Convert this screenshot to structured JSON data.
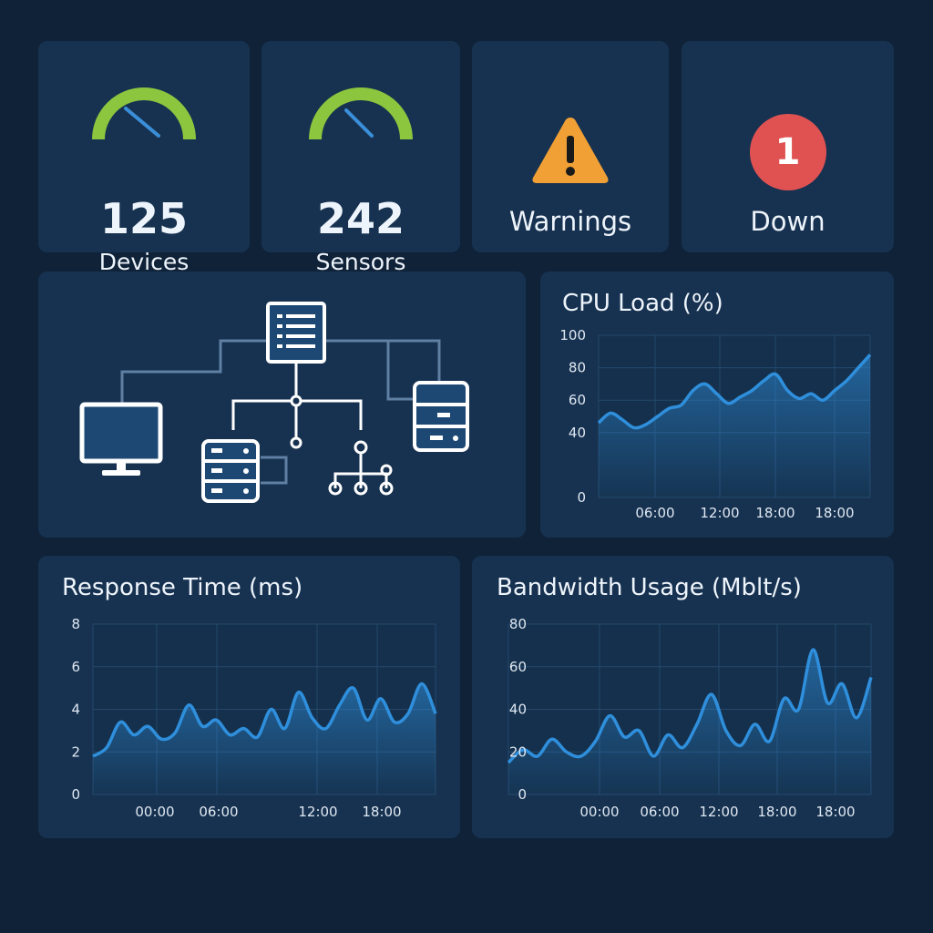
{
  "stats": {
    "devices": {
      "value": "125",
      "label": "Devices"
    },
    "sensors": {
      "value": "242",
      "label": "Sensors"
    },
    "warnings": {
      "label": "Warnings"
    },
    "down": {
      "count": "1",
      "label": "Down"
    }
  },
  "colors": {
    "background": "#0f2238",
    "card": "#173250",
    "gauge_green": "#8cc63f",
    "needle": "#3a8fd8",
    "warning": "#f0a035",
    "down": "#e05252",
    "line": "#2f8fdc"
  },
  "icons": {
    "topology": [
      "server-icon",
      "monitor-icon",
      "database-icon",
      "network-icon"
    ]
  },
  "chart_data": [
    {
      "id": "cpu",
      "type": "area",
      "title": "CPU Load (%)",
      "y_ticks": [
        "100",
        "80",
        "60",
        "40",
        "0"
      ],
      "x_ticks": [
        "06:00",
        "12:00",
        "18:00",
        "18:00"
      ],
      "grid": true,
      "values": [
        46,
        52,
        48,
        43,
        45,
        50,
        55,
        57,
        66,
        70,
        64,
        58,
        62,
        66,
        72,
        76,
        66,
        61,
        64,
        60,
        66,
        72,
        80,
        88
      ]
    },
    {
      "id": "response",
      "type": "area",
      "title": "Response Time (ms)",
      "y_ticks": [
        "8",
        "6",
        "4",
        "2",
        "0"
      ],
      "x_ticks": [
        "00:00",
        "06:00",
        "12:00",
        "18:00"
      ],
      "grid": true,
      "values": [
        1.8,
        2.2,
        3.4,
        2.8,
        3.2,
        2.6,
        2.9,
        4.2,
        3.2,
        3.5,
        2.8,
        3.1,
        2.7,
        4.0,
        3.1,
        4.8,
        3.6,
        3.1,
        4.2,
        5.0,
        3.5,
        4.5,
        3.4,
        3.8,
        5.2,
        3.8
      ]
    },
    {
      "id": "bandwidth",
      "type": "area",
      "title": "Bandwidth Usage (Mblt/s)",
      "y_ticks": [
        "80",
        "60",
        "40",
        "20",
        "0"
      ],
      "x_ticks": [
        "00:00",
        "06:00",
        "12:00",
        "18:00",
        "18:00"
      ],
      "grid": true,
      "values": [
        15,
        21,
        18,
        26,
        20,
        18,
        25,
        37,
        27,
        30,
        18,
        28,
        22,
        33,
        47,
        30,
        23,
        33,
        25,
        45,
        40,
        68,
        43,
        52,
        36,
        55
      ]
    }
  ]
}
